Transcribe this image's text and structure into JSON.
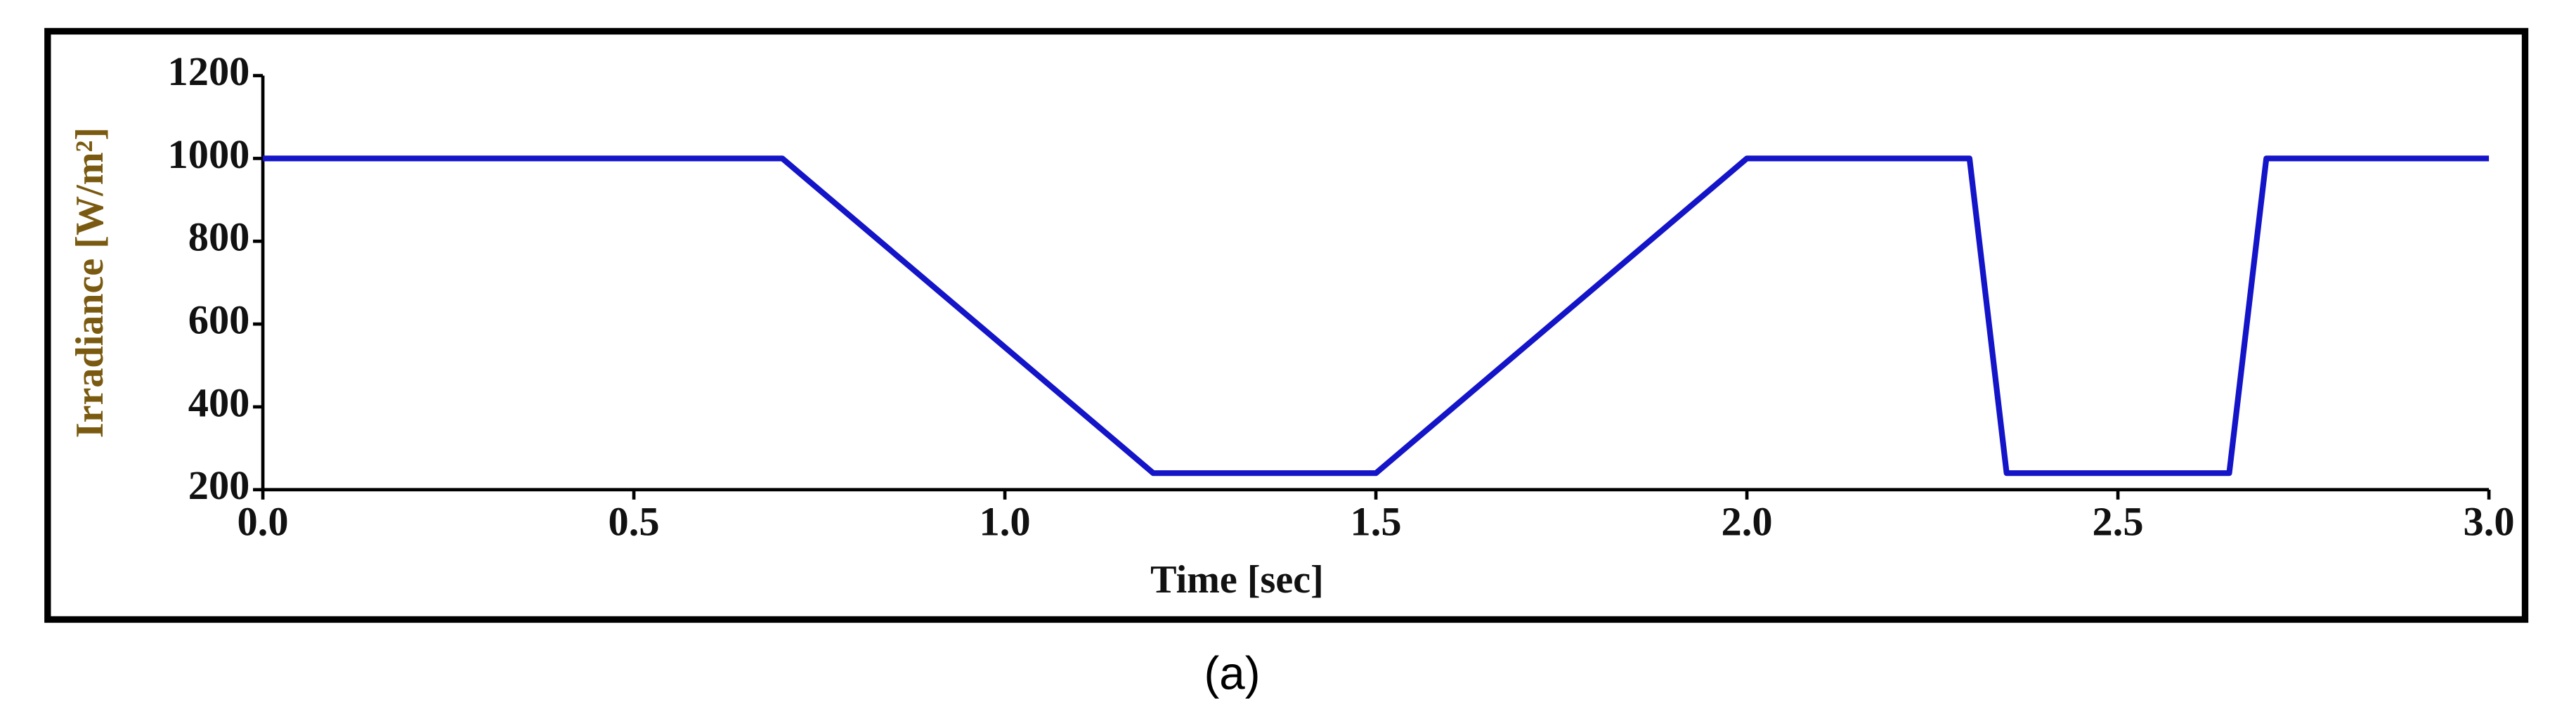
{
  "chart_data": {
    "type": "line",
    "x_label": "Time [sec]",
    "y_label": "Irradiance [W/m²]",
    "caption": "(a)",
    "x": [
      0,
      0.7,
      1.2,
      1.5,
      2.0,
      2.3,
      2.35,
      2.65,
      2.7,
      3.0
    ],
    "series": [
      {
        "color": "#1414c8",
        "values": [
          1000,
          1000,
          240,
          240,
          1000,
          1000,
          240,
          240,
          1000,
          1000
        ]
      }
    ],
    "xlim": [
      0,
      3
    ],
    "ylim": [
      200,
      1200
    ],
    "xticks": [
      {
        "value": 0,
        "label": "0.0"
      },
      0.5,
      {
        "value": 1,
        "label": "1.0"
      },
      1.5,
      {
        "value": 2,
        "label": "2.0"
      },
      2.5,
      {
        "value": 3,
        "label": "3.0"
      }
    ],
    "yticks": [
      200,
      400,
      600,
      800,
      1000,
      1200
    ],
    "grid": false
  }
}
